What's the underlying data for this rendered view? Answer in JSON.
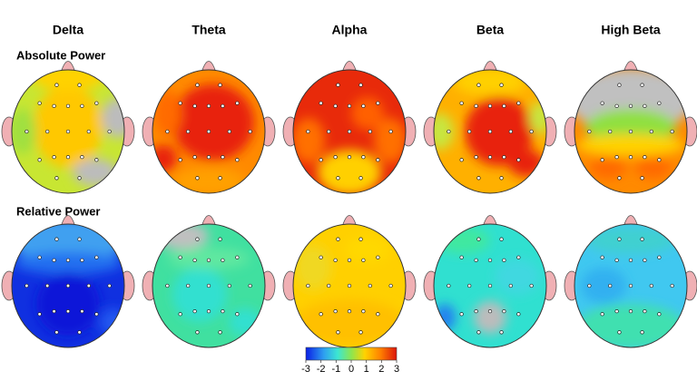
{
  "columns": [
    "Delta",
    "Theta",
    "Alpha",
    "Beta",
    "High Beta"
  ],
  "rows": [
    "Absolute Power",
    "Relative Power"
  ],
  "colorbar": {
    "lim": [
      -3,
      3
    ],
    "ticks": [
      -3,
      -2,
      -1,
      0,
      1,
      2,
      3
    ]
  }
}
